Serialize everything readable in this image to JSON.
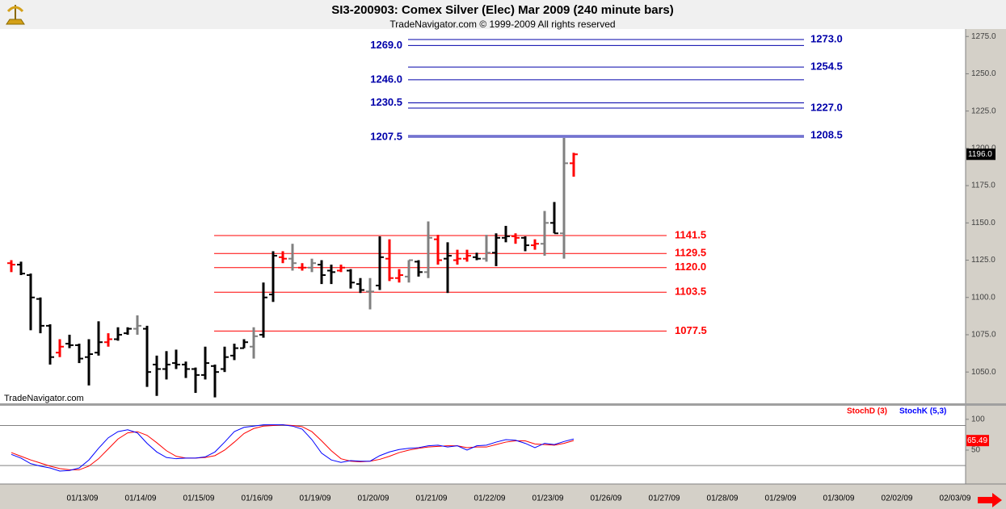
{
  "chart_data": [
    {
      "type": "ohlc",
      "title": "SI3-200903:  Comex Silver (Elec) Mar 2009  (240 minute bars)",
      "subtitle": "TradeNavigator.com © 1999-2009 All rights reserved",
      "watermark": "TradeNavigator.com",
      "dates": [
        "01/13/09",
        "01/14/09",
        "01/15/09",
        "01/16/09",
        "01/19/09",
        "01/20/09",
        "01/21/09",
        "01/22/09",
        "01/23/09",
        "01/26/09",
        "01/27/09",
        "01/28/09",
        "01/29/09",
        "01/30/09",
        "02/02/09",
        "02/03/09"
      ],
      "ylim": [
        1029,
        1280
      ],
      "yticks": [
        {
          "value": 1050,
          "label": "1050.0"
        },
        {
          "value": 1075,
          "label": "1075.0"
        },
        {
          "value": 1100,
          "label": "1100.0"
        },
        {
          "value": 1125,
          "label": "1125.0"
        },
        {
          "value": 1150,
          "label": "1150.0"
        },
        {
          "value": 1175,
          "label": "1175.0"
        },
        {
          "value": 1200,
          "label": "1200.0"
        },
        {
          "value": 1225,
          "label": "1225.0"
        },
        {
          "value": 1250,
          "label": "1250.0"
        },
        {
          "value": 1275,
          "label": "1275.0"
        }
      ],
      "open": [
        1123,
        1122,
        1115,
        1099,
        1081,
        1063,
        1069,
        1068,
        1060,
        1063,
        1070,
        1072,
        1076,
        1079,
        1079,
        1055,
        1052,
        1056,
        1055,
        1052,
        1048,
        1054,
        1052,
        1061,
        1066,
        1067,
        1075,
        1102,
        1127,
        1126,
        1120,
        1120,
        1122,
        1118,
        1118,
        1118,
        1109,
        1104,
        1108,
        1126,
        1113,
        1114,
        1124,
        1117,
        1139,
        1126,
        1125,
        1126,
        1127,
        1126,
        1130,
        1140,
        1141,
        1140,
        1135,
        1136,
        1150,
        1143,
        1190
      ],
      "high": [
        1125,
        1124,
        1116,
        1100,
        1082,
        1072,
        1075,
        1069,
        1072,
        1084,
        1076,
        1080,
        1080,
        1088,
        1081,
        1061,
        1064,
        1065,
        1057,
        1053,
        1067,
        1055,
        1067,
        1069,
        1072,
        1080,
        1110,
        1131,
        1131,
        1136,
        1123,
        1126,
        1125,
        1122,
        1122,
        1119,
        1113,
        1113,
        1141,
        1139,
        1119,
        1125,
        1125,
        1151,
        1142,
        1137,
        1132,
        1132,
        1130,
        1142,
        1143,
        1148,
        1143,
        1141,
        1139,
        1158,
        1164,
        1207,
        1197
      ],
      "low": [
        1117,
        1115,
        1078,
        1076,
        1055,
        1060,
        1066,
        1056,
        1041,
        1061,
        1067,
        1071,
        1075,
        1075,
        1040,
        1034,
        1045,
        1052,
        1046,
        1036,
        1045,
        1033,
        1050,
        1058,
        1066,
        1059,
        1073,
        1097,
        1123,
        1118,
        1118,
        1117,
        1109,
        1109,
        1117,
        1106,
        1103,
        1092,
        1105,
        1111,
        1110,
        1110,
        1114,
        1113,
        1122,
        1103,
        1122,
        1124,
        1125,
        1124,
        1121,
        1137,
        1136,
        1131,
        1132,
        1128,
        1143,
        1126,
        1181
      ],
      "close": [
        1122,
        1116,
        1100,
        1081,
        1060,
        1067,
        1068,
        1059,
        1062,
        1070,
        1072,
        1075,
        1079,
        1081,
        1050,
        1052,
        1055,
        1055,
        1052,
        1048,
        1056,
        1050,
        1060,
        1066,
        1070,
        1074,
        1100,
        1128,
        1126,
        1123,
        1120,
        1123,
        1115,
        1117,
        1120,
        1110,
        1105,
        1104,
        1127,
        1113,
        1115,
        1125,
        1117,
        1140,
        1125,
        1128,
        1126,
        1128,
        1126,
        1130,
        1140,
        1141,
        1140,
        1135,
        1136,
        1150,
        1143,
        1190,
        1196
      ],
      "colors": [
        "#ff0000",
        "#000000",
        "#000000",
        "#000000",
        "#000000",
        "#ff0000",
        "#000000",
        "#000000",
        "#000000",
        "#000000",
        "#ff0000",
        "#000000",
        "#000000",
        "#808080",
        "#000000",
        "#000000",
        "#000000",
        "#000000",
        "#000000",
        "#000000",
        "#000000",
        "#000000",
        "#000000",
        "#000000",
        "#000000",
        "#808080",
        "#000000",
        "#000000",
        "#ff0000",
        "#808080",
        "#ff0000",
        "#808080",
        "#000000",
        "#000000",
        "#ff0000",
        "#000000",
        "#000000",
        "#808080",
        "#000000",
        "#ff0000",
        "#ff0000",
        "#808080",
        "#000000",
        "#808080",
        "#ff0000",
        "#000000",
        "#ff0000",
        "#ff0000",
        "#000000",
        "#808080",
        "#000000",
        "#000000",
        "#ff0000",
        "#000000",
        "#ff0000",
        "#808080",
        "#000000",
        "#808080",
        "#ff0000"
      ],
      "last_price_label": "1196.0",
      "red_levels": [
        {
          "value": 1141.5,
          "label": "1141.5"
        },
        {
          "value": 1129.5,
          "label": "1129.5"
        },
        {
          "value": 1120,
          "label": "1120.0"
        },
        {
          "value": 1103.5,
          "label": "1103.5"
        },
        {
          "value": 1077.5,
          "label": "1077.5"
        }
      ],
      "blue_levels_left": [
        {
          "value": 1269,
          "label": "1269.0"
        },
        {
          "value": 1246,
          "label": "1246.0"
        },
        {
          "value": 1230.5,
          "label": "1230.5"
        },
        {
          "value": 1207.5,
          "label": "1207.5"
        }
      ],
      "blue_levels_right": [
        {
          "value": 1273,
          "label": "1273.0"
        },
        {
          "value": 1254.5,
          "label": "1254.5"
        },
        {
          "value": 1227,
          "label": "1227.0"
        },
        {
          "value": 1208.5,
          "label": "1208.5"
        }
      ]
    },
    {
      "type": "line",
      "ylim": [
        -5,
        122
      ],
      "yticks": [
        100,
        50
      ],
      "hlines": [
        90,
        25
      ],
      "series": [
        {
          "name": "StochD (3)",
          "color": "#ff0000",
          "values": [
            46,
            40,
            34,
            29,
            24,
            20,
            18,
            18,
            24,
            36,
            52,
            68,
            78,
            80,
            74,
            62,
            49,
            40,
            37,
            37,
            38,
            41,
            50,
            63,
            77,
            85,
            89,
            90,
            91,
            90,
            88,
            80,
            65,
            49,
            36,
            32,
            31,
            32,
            35,
            40,
            46,
            50,
            53,
            55,
            56,
            57,
            57,
            54,
            55,
            55,
            59,
            63,
            65,
            65,
            60,
            59,
            58,
            61,
            65.49
          ]
        },
        {
          "name": "StochK (5,3)",
          "color": "#0000ff",
          "values": [
            43,
            37,
            28,
            24,
            21,
            16,
            17,
            21,
            34,
            53,
            70,
            80,
            83,
            78,
            61,
            47,
            38,
            36,
            37,
            37,
            39,
            47,
            63,
            80,
            87,
            89,
            91,
            91,
            91,
            89,
            84,
            67,
            45,
            34,
            30,
            33,
            32,
            32,
            41,
            47,
            51,
            53,
            54,
            57,
            58,
            55,
            57,
            50,
            57,
            58,
            63,
            67,
            66,
            61,
            54,
            61,
            59,
            64,
            68
          ]
        }
      ]
    }
  ]
}
